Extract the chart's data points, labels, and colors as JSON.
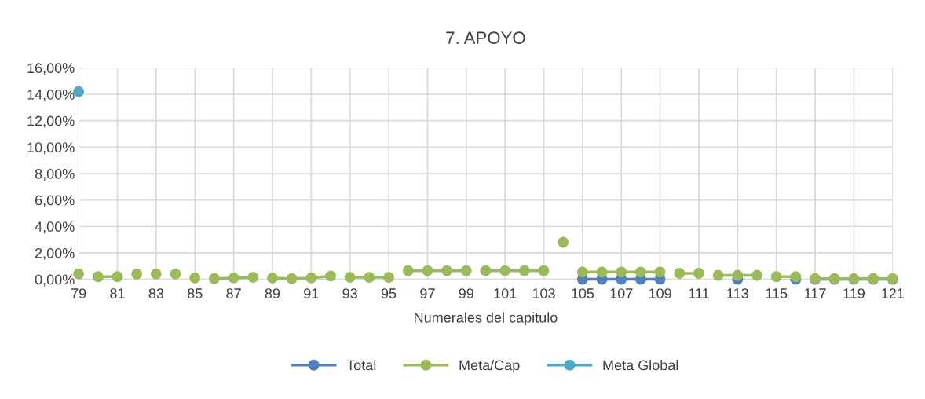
{
  "chart_data": {
    "type": "line",
    "title": "7. APOYO",
    "xlabel": "Numerales del capitulo",
    "categories": [
      "79",
      null,
      "81",
      null,
      "83",
      null,
      "85",
      null,
      "87",
      null,
      "89",
      null,
      "91",
      null,
      "93",
      null,
      "95",
      null,
      "97",
      null,
      "99",
      null,
      "101",
      null,
      "103",
      null,
      "105",
      null,
      "107",
      null,
      "109",
      null,
      "111",
      null,
      "113",
      null,
      "115",
      null,
      "117",
      null,
      "119",
      null,
      "121"
    ],
    "series": [
      {
        "name": "Total",
        "color": "#4f81bd",
        "values": [
          null,
          null,
          null,
          null,
          null,
          null,
          null,
          null,
          null,
          null,
          null,
          null,
          null,
          null,
          null,
          null,
          null,
          null,
          null,
          null,
          null,
          null,
          null,
          null,
          null,
          null,
          0,
          0,
          0,
          0,
          0,
          null,
          null,
          null,
          null,
          null,
          null,
          null,
          null,
          null,
          null,
          null,
          null
        ]
      },
      {
        "color": "#4f81bd",
        "values": [
          null,
          null,
          null,
          null,
          null,
          null,
          null,
          null,
          null,
          null,
          null,
          null,
          null,
          null,
          null,
          null,
          null,
          null,
          null,
          null,
          null,
          null,
          null,
          null,
          null,
          null,
          null,
          null,
          null,
          null,
          null,
          null,
          null,
          null,
          0,
          null,
          null,
          null,
          null,
          null,
          null,
          null,
          null
        ]
      },
      {
        "color": "#4f81bd",
        "values": [
          null,
          null,
          null,
          null,
          null,
          null,
          null,
          null,
          null,
          null,
          null,
          null,
          null,
          null,
          null,
          null,
          null,
          null,
          null,
          null,
          null,
          null,
          null,
          null,
          null,
          null,
          null,
          null,
          null,
          null,
          null,
          null,
          null,
          null,
          null,
          null,
          null,
          0,
          null,
          null,
          null,
          null,
          null
        ]
      },
      {
        "color": "#4f81bd",
        "values": [
          null,
          null,
          null,
          null,
          null,
          null,
          null,
          null,
          null,
          null,
          null,
          null,
          null,
          null,
          null,
          null,
          null,
          null,
          null,
          null,
          null,
          null,
          null,
          null,
          null,
          null,
          null,
          null,
          null,
          null,
          null,
          null,
          null,
          null,
          null,
          null,
          null,
          null,
          0,
          0,
          0,
          0,
          0
        ]
      },
      {
        "name": "Meta/Cap",
        "color": "#9bbb59",
        "values": [
          0.4,
          null,
          null,
          null,
          null,
          null,
          null,
          null,
          null,
          null,
          null,
          null,
          null,
          null,
          null,
          null,
          null,
          null,
          null,
          null,
          null,
          null,
          null,
          null,
          null,
          null,
          null,
          null,
          null,
          null,
          null,
          null,
          null,
          null,
          null,
          null,
          null,
          null,
          null,
          null,
          null,
          null,
          null
        ]
      },
      {
        "color": "#9bbb59",
        "values": [
          null,
          0.2,
          0.2,
          null,
          null,
          null,
          null,
          null,
          null,
          null,
          null,
          null,
          null,
          null,
          null,
          null,
          null,
          null,
          null,
          null,
          null,
          null,
          null,
          null,
          null,
          null,
          null,
          null,
          null,
          null,
          null,
          null,
          null,
          null,
          null,
          null,
          null,
          null,
          null,
          null,
          null,
          null,
          null
        ]
      },
      {
        "color": "#9bbb59",
        "values": [
          null,
          null,
          null,
          0.4,
          null,
          null,
          null,
          null,
          null,
          null,
          null,
          null,
          null,
          null,
          null,
          null,
          null,
          null,
          null,
          null,
          null,
          null,
          null,
          null,
          null,
          null,
          null,
          null,
          null,
          null,
          null,
          null,
          null,
          null,
          null,
          null,
          null,
          null,
          null,
          null,
          null,
          null,
          null
        ]
      },
      {
        "color": "#9bbb59",
        "values": [
          null,
          null,
          null,
          null,
          0.4,
          null,
          null,
          null,
          null,
          null,
          null,
          null,
          null,
          null,
          null,
          null,
          null,
          null,
          null,
          null,
          null,
          null,
          null,
          null,
          null,
          null,
          null,
          null,
          null,
          null,
          null,
          null,
          null,
          null,
          null,
          null,
          null,
          null,
          null,
          null,
          null,
          null,
          null
        ]
      },
      {
        "color": "#9bbb59",
        "values": [
          null,
          null,
          null,
          null,
          null,
          0.4,
          null,
          null,
          null,
          null,
          null,
          null,
          null,
          null,
          null,
          null,
          null,
          null,
          null,
          null,
          null,
          null,
          null,
          null,
          null,
          null,
          null,
          null,
          null,
          null,
          null,
          null,
          null,
          null,
          null,
          null,
          null,
          null,
          null,
          null,
          null,
          null,
          null
        ]
      },
      {
        "color": "#9bbb59",
        "values": [
          null,
          null,
          null,
          null,
          null,
          null,
          0.1,
          null,
          null,
          null,
          null,
          null,
          null,
          null,
          null,
          null,
          null,
          null,
          null,
          null,
          null,
          null,
          null,
          null,
          null,
          null,
          null,
          null,
          null,
          null,
          null,
          null,
          null,
          null,
          null,
          null,
          null,
          null,
          null,
          null,
          null,
          null,
          null
        ]
      },
      {
        "color": "#9bbb59",
        "values": [
          null,
          null,
          null,
          null,
          null,
          null,
          null,
          0.05,
          0.1,
          0.15,
          null,
          null,
          null,
          null,
          null,
          null,
          null,
          null,
          null,
          null,
          null,
          null,
          null,
          null,
          null,
          null,
          null,
          null,
          null,
          null,
          null,
          null,
          null,
          null,
          null,
          null,
          null,
          null,
          null,
          null,
          null,
          null,
          null
        ]
      },
      {
        "color": "#9bbb59",
        "values": [
          null,
          null,
          null,
          null,
          null,
          null,
          null,
          null,
          null,
          null,
          0.1,
          0.05,
          0.1,
          0.25,
          null,
          null,
          null,
          null,
          null,
          null,
          null,
          null,
          null,
          null,
          null,
          null,
          null,
          null,
          null,
          null,
          null,
          null,
          null,
          null,
          null,
          null,
          null,
          null,
          null,
          null,
          null,
          null,
          null
        ]
      },
      {
        "color": "#9bbb59",
        "values": [
          null,
          null,
          null,
          null,
          null,
          null,
          null,
          null,
          null,
          null,
          null,
          null,
          null,
          null,
          0.15,
          0.15,
          0.15,
          null,
          null,
          null,
          null,
          null,
          null,
          null,
          null,
          null,
          null,
          null,
          null,
          null,
          null,
          null,
          null,
          null,
          null,
          null,
          null,
          null,
          null,
          null,
          null,
          null,
          null
        ]
      },
      {
        "color": "#9bbb59",
        "values": [
          null,
          null,
          null,
          null,
          null,
          null,
          null,
          null,
          null,
          null,
          null,
          null,
          null,
          null,
          null,
          null,
          null,
          0.65,
          0.65,
          0.65,
          0.65,
          null,
          null,
          null,
          null,
          null,
          null,
          null,
          null,
          null,
          null,
          null,
          null,
          null,
          null,
          null,
          null,
          null,
          null,
          null,
          null,
          null,
          null
        ]
      },
      {
        "color": "#9bbb59",
        "values": [
          null,
          null,
          null,
          null,
          null,
          null,
          null,
          null,
          null,
          null,
          null,
          null,
          null,
          null,
          null,
          null,
          null,
          null,
          null,
          null,
          null,
          0.65,
          0.65,
          0.65,
          0.65,
          null,
          null,
          null,
          null,
          null,
          null,
          null,
          null,
          null,
          null,
          null,
          null,
          null,
          null,
          null,
          null,
          null,
          null
        ]
      },
      {
        "color": "#9bbb59",
        "values": [
          null,
          null,
          null,
          null,
          null,
          null,
          null,
          null,
          null,
          null,
          null,
          null,
          null,
          null,
          null,
          null,
          null,
          null,
          null,
          null,
          null,
          null,
          null,
          null,
          null,
          2.8,
          null,
          null,
          null,
          null,
          null,
          null,
          null,
          null,
          null,
          null,
          null,
          null,
          null,
          null,
          null,
          null,
          null
        ]
      },
      {
        "color": "#9bbb59",
        "values": [
          null,
          null,
          null,
          null,
          null,
          null,
          null,
          null,
          null,
          null,
          null,
          null,
          null,
          null,
          null,
          null,
          null,
          null,
          null,
          null,
          null,
          null,
          null,
          null,
          null,
          null,
          0.55,
          0.55,
          0.55,
          0.55,
          0.55,
          null,
          null,
          null,
          null,
          null,
          null,
          null,
          null,
          null,
          null,
          null,
          null
        ]
      },
      {
        "color": "#9bbb59",
        "values": [
          null,
          null,
          null,
          null,
          null,
          null,
          null,
          null,
          null,
          null,
          null,
          null,
          null,
          null,
          null,
          null,
          null,
          null,
          null,
          null,
          null,
          null,
          null,
          null,
          null,
          null,
          null,
          null,
          null,
          null,
          null,
          0.45,
          0.45,
          null,
          null,
          null,
          null,
          null,
          null,
          null,
          null,
          null,
          null
        ]
      },
      {
        "color": "#9bbb59",
        "values": [
          null,
          null,
          null,
          null,
          null,
          null,
          null,
          null,
          null,
          null,
          null,
          null,
          null,
          null,
          null,
          null,
          null,
          null,
          null,
          null,
          null,
          null,
          null,
          null,
          null,
          null,
          null,
          null,
          null,
          null,
          null,
          null,
          null,
          0.3,
          0.3,
          0.3,
          null,
          null,
          null,
          null,
          null,
          null,
          null
        ]
      },
      {
        "color": "#9bbb59",
        "values": [
          null,
          null,
          null,
          null,
          null,
          null,
          null,
          null,
          null,
          null,
          null,
          null,
          null,
          null,
          null,
          null,
          null,
          null,
          null,
          null,
          null,
          null,
          null,
          null,
          null,
          null,
          null,
          null,
          null,
          null,
          null,
          null,
          null,
          null,
          null,
          null,
          0.2,
          0.2,
          null,
          null,
          null,
          null,
          null
        ]
      },
      {
        "color": "#9bbb59",
        "values": [
          null,
          null,
          null,
          null,
          null,
          null,
          null,
          null,
          null,
          null,
          null,
          null,
          null,
          null,
          null,
          null,
          null,
          null,
          null,
          null,
          null,
          null,
          null,
          null,
          null,
          null,
          null,
          null,
          null,
          null,
          null,
          null,
          null,
          null,
          null,
          null,
          null,
          null,
          0.05,
          0.05,
          0.05,
          0.05,
          0.05
        ]
      },
      {
        "name": "Meta Global",
        "color": "#4bacc6",
        "values": [
          14.2,
          null,
          null,
          null,
          null,
          null,
          null,
          null,
          null,
          null,
          null,
          null,
          null,
          null,
          null,
          null,
          null,
          null,
          null,
          null,
          null,
          null,
          null,
          null,
          null,
          null,
          null,
          null,
          null,
          null,
          null,
          null,
          null,
          null,
          null,
          null,
          null,
          null,
          null,
          null,
          null,
          null,
          null
        ]
      }
    ],
    "ylim": [
      0,
      16
    ],
    "yticks": [
      {
        "value": 0,
        "label": "0,00%"
      },
      {
        "value": 2,
        "label": "2,00%"
      },
      {
        "value": 4,
        "label": "4,00%"
      },
      {
        "value": 6,
        "label": "6,00%"
      },
      {
        "value": 8,
        "label": "8,00%"
      },
      {
        "value": 10,
        "label": "10,00%"
      },
      {
        "value": 12,
        "label": "12,00%"
      },
      {
        "value": 14,
        "label": "14,00%"
      },
      {
        "value": 16,
        "label": "16,00%"
      }
    ],
    "grid": true,
    "legend": "bottom",
    "marker": "circle",
    "line_style": "solid"
  }
}
